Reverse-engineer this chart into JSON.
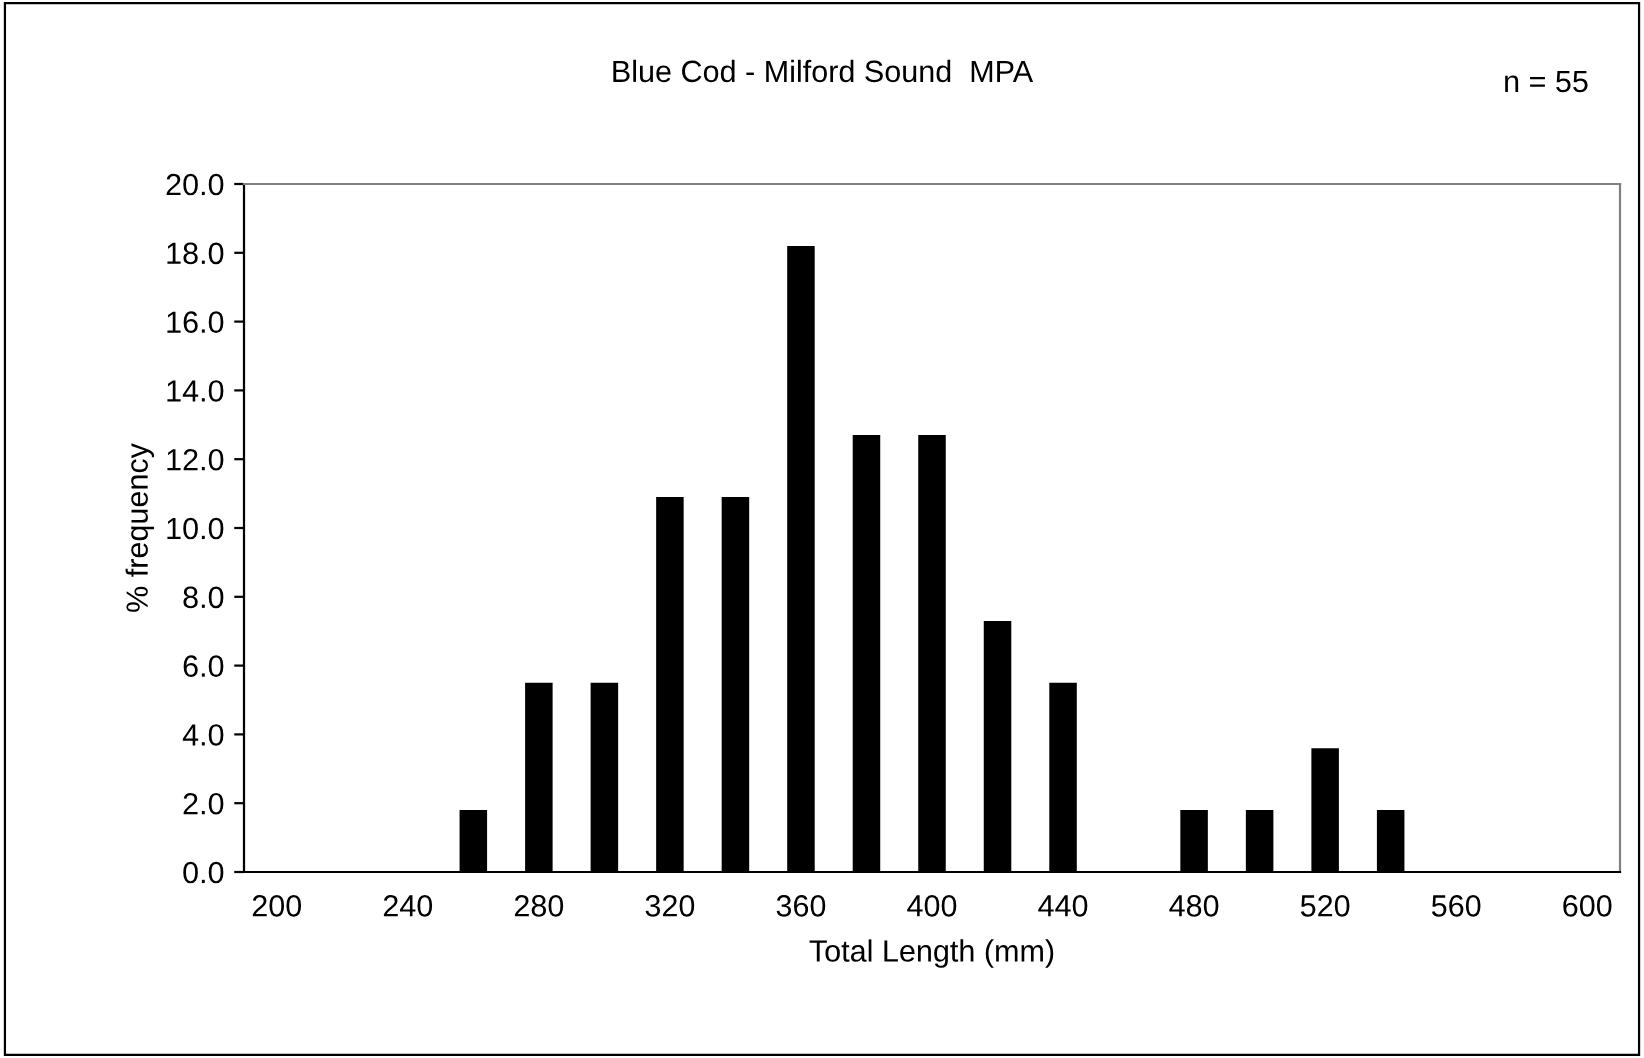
{
  "chart_data": {
    "type": "bar",
    "title": "Blue Cod - Milford Sound  MPA",
    "xlabel": "Total Length (mm)",
    "ylabel": "% frequency",
    "annotations": [
      "n = 55"
    ],
    "categories": [
      "200",
      null,
      "240",
      null,
      "280",
      null,
      "320",
      null,
      "360",
      null,
      "400",
      null,
      "440",
      null,
      "480",
      null,
      "520",
      null,
      "560",
      null,
      "600"
    ],
    "values": [
      0,
      0,
      0,
      1.8,
      5.5,
      5.5,
      10.9,
      10.9,
      18.2,
      12.7,
      12.7,
      7.3,
      5.5,
      0,
      1.8,
      1.8,
      3.6,
      1.8,
      0,
      0,
      0
    ],
    "color": "#000000",
    "ylim": [
      0,
      20
    ],
    "yticks": [
      {
        "value": 0,
        "label": "0.0"
      },
      {
        "value": 2,
        "label": "2.0"
      },
      {
        "value": 4,
        "label": "4.0"
      },
      {
        "value": 6,
        "label": "6.0"
      },
      {
        "value": 8,
        "label": "8.0"
      },
      {
        "value": 10,
        "label": "10.0"
      },
      {
        "value": 12,
        "label": "12.0"
      },
      {
        "value": 14,
        "label": "14.0"
      },
      {
        "value": 16,
        "label": "16.0"
      },
      {
        "value": 18,
        "label": "18.0"
      },
      {
        "value": 20,
        "label": "20.0"
      }
    ],
    "grid": false,
    "legend": false
  }
}
